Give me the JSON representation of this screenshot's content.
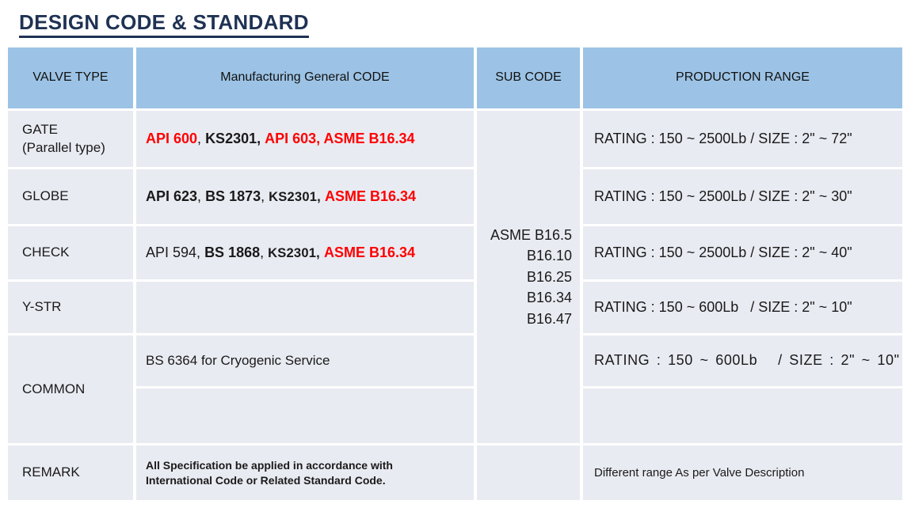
{
  "title": "DESIGN CODE & STANDARD",
  "colors": {
    "header_bg": "#9CC3E5",
    "row_bg": "#E9EBF2",
    "accent_red": "#FF0000",
    "title_navy": "#1F3254"
  },
  "table": {
    "headers": {
      "valve_type": "VALVE TYPE",
      "manufacturing_code": "Manufacturing General CODE",
      "sub_code": "SUB CODE",
      "production_range": "PRODUCTION RANGE"
    },
    "sub_code_list": "ASME B16.5\nB16.10\nB16.25\nB16.34\nB16.47",
    "rows": [
      {
        "label": "GATE\n(Parallel type)",
        "segments": [
          {
            "text": "API 600",
            "style": "rb"
          },
          {
            "text": ", ",
            "style": "br"
          },
          {
            "text": "KS2301,",
            "style": "bb"
          },
          {
            "text": " ",
            "style": "br"
          },
          {
            "text": "API 603, ASME B16.34",
            "style": "rb"
          }
        ],
        "range": "RATING : 150 ~ 2500Lb / SIZE : 2\" ~ 72\""
      },
      {
        "label": "GLOBE",
        "segments": [
          {
            "text": "API 623",
            "style": "bb"
          },
          {
            "text": ", ",
            "style": "br"
          },
          {
            "text": "BS 1873",
            "style": "bb"
          },
          {
            "text": ", ",
            "style": "br"
          },
          {
            "text": "KS2301,",
            "style": "kb"
          },
          {
            "text": " ",
            "style": "br"
          },
          {
            "text": "ASME B16.34",
            "style": "rb"
          }
        ],
        "range": "RATING : 150 ~ 2500Lb / SIZE : 2\" ~ 30\""
      },
      {
        "label": "CHECK",
        "segments": [
          {
            "text": "API 594, ",
            "style": "br"
          },
          {
            "text": "BS 1868",
            "style": "bb"
          },
          {
            "text": ", ",
            "style": "br"
          },
          {
            "text": "KS2301,",
            "style": "kb"
          },
          {
            "text": " ",
            "style": "br"
          },
          {
            "text": "ASME B16.34",
            "style": "rb"
          }
        ],
        "range": "RATING : 150 ~ 2500Lb / SIZE : 2\" ~ 40\""
      },
      {
        "label": "Y-STR",
        "segments": [],
        "range": "RATING : 150 ~ 600Lb   / SIZE : 2\" ~ 10\""
      },
      {
        "label": "COMMON",
        "code_note": "BS 6364 for Cryogenic Service",
        "range": "RATING : 150 ~ 600Lb   / SIZE : 2\" ~ 10\""
      },
      {
        "label": "REMARK",
        "note": "All Specification be applied in accordance with\nInternational Code or Related Standard Code.",
        "range": "Different range As per Valve Description"
      }
    ]
  }
}
